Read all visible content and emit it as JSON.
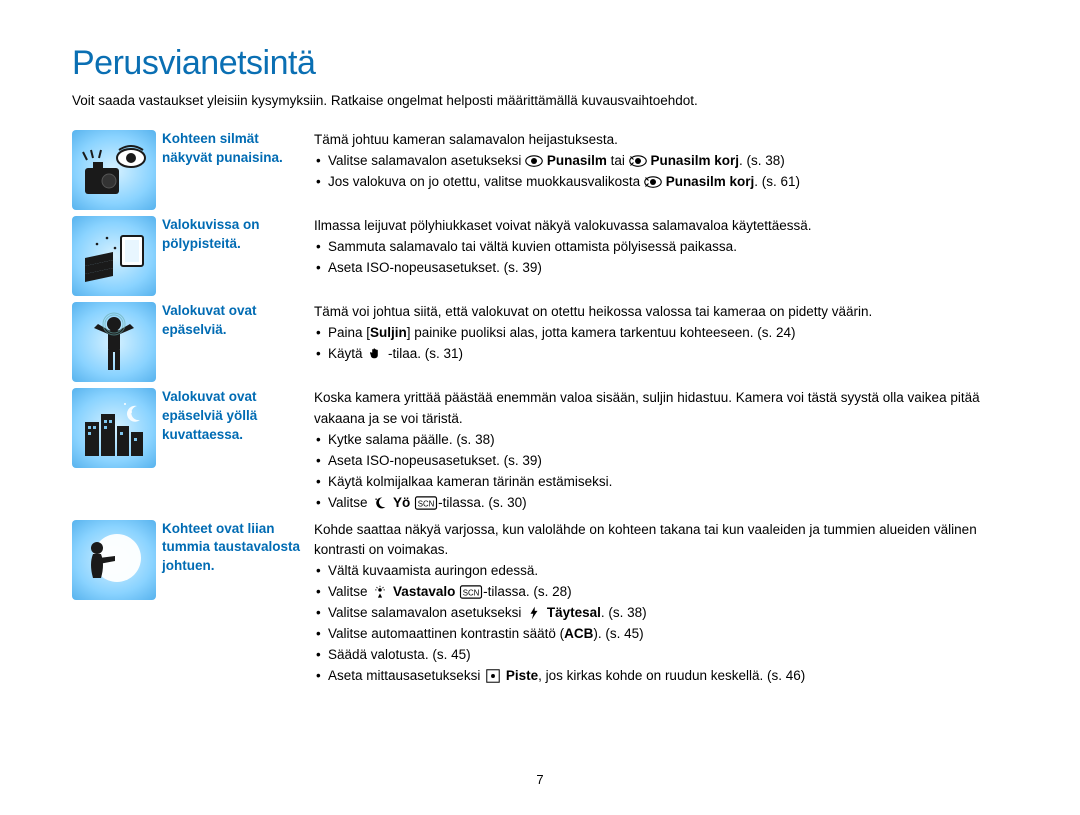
{
  "title": "Perusvianetsintä",
  "subtitle": "Voit saada vastaukset yleisiin kysymyksiin. Ratkaise ongelmat helposti määrittämällä kuvausvaihtoehdot.",
  "page_number": "7",
  "rows": [
    {
      "heading": "Kohteen silmät näkyvät punaisina.",
      "intro": "Tämä johtuu kameran salamavalon heijastuksesta.",
      "bullets": [
        {
          "pre": "Valitse salamavalon asetukseksi ",
          "icon": "eye",
          "mid1": " ",
          "b1": "Punasilm",
          "mid2": " tai ",
          "icon2": "eye-fix",
          "b2": "Punasilm korj",
          "post": ". (s. 38)"
        },
        {
          "pre": "Jos valokuva on jo otettu, valitse muokkausvalikosta ",
          "icon": "eye-fix",
          "mid1": " ",
          "b1": "Punasilm korj",
          "post": ". (s. 61)"
        }
      ]
    },
    {
      "heading": "Valokuvissa on pölypisteitä.",
      "intro": "Ilmassa leijuvat pölyhiukkaset voivat näkyä valokuvassa salamavaloa käytettäessä.",
      "bullets": [
        {
          "text": "Sammuta salamavalo tai vältä kuvien ottamista pölyisessä paikassa."
        },
        {
          "text": "Aseta ISO-nopeusasetukset. (s. 39)"
        }
      ]
    },
    {
      "heading": "Valokuvat ovat epäselviä.",
      "intro": "Tämä voi johtua siitä, että valokuvat on otettu heikossa valossa tai kameraa on pidetty väärin.",
      "bullets": [
        {
          "pre": "Paina [",
          "b1": "Suljin",
          "post": "] painike puoliksi alas, jotta kamera tarkentuu kohteeseen. (s. 24)"
        },
        {
          "pre": "Käytä ",
          "icon": "hand",
          "post": " -tilaa. (s. 31)"
        }
      ]
    },
    {
      "heading": "Valokuvat ovat epäselviä yöllä kuvattaessa.",
      "intro": "Koska kamera yrittää päästää enemmän valoa sisään, suljin hidastuu. Kamera voi tästä syystä olla vaikea pitää vakaana ja se voi täristä.",
      "bullets": [
        {
          "text": "Kytke salama päälle. (s. 38)"
        },
        {
          "text": "Aseta ISO-nopeusasetukset. (s. 39)"
        },
        {
          "text": "Käytä kolmijalkaa kameran tärinän estämiseksi."
        },
        {
          "pre": "Valitse ",
          "icon": "moon",
          "mid1": " ",
          "b1": "Yö",
          "mid2": " ",
          "icon2": "scn",
          "post": "-tilassa. (s. 30)"
        }
      ]
    },
    {
      "heading": "Kohteet ovat liian tummia taustavalosta johtuen.",
      "intro": "Kohde saattaa näkyä varjossa, kun valolähde on kohteen takana tai kun vaaleiden ja tummien alueiden välinen kontrasti on voimakas.",
      "bullets": [
        {
          "text": "Vältä kuvaamista auringon edessä."
        },
        {
          "pre": "Valitse ",
          "icon": "backlight",
          "mid1": " ",
          "b1": "Vastavalo",
          "mid2": " ",
          "icon2": "scn",
          "post": "-tilassa. (s. 28)"
        },
        {
          "pre": "Valitse salamavalon asetukseksi ",
          "icon": "flash",
          "mid1": " ",
          "b1": "Täytesal",
          "post": ". (s. 38)"
        },
        {
          "pre": "Valitse automaattinen kontrastin säätö (",
          "b1": "ACB",
          "post": "). (s. 45)"
        },
        {
          "text": "Säädä valotusta. (s. 45)"
        },
        {
          "pre": "Aseta mittausasetukseksi ",
          "icon": "spot",
          "mid1": " ",
          "b1": "Piste",
          "post": ", jos kirkas kohde on ruudun keskellä. (s. 46)"
        }
      ]
    }
  ]
}
